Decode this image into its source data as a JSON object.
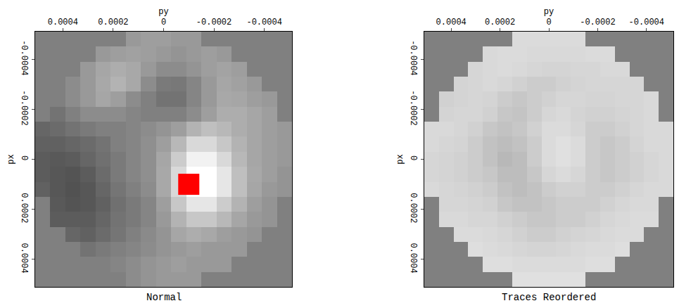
{
  "chart_data": [
    {
      "type": "heatmap",
      "title": "Normal",
      "x_label": "py",
      "y_label": "px",
      "x": [
        0.00048,
        0.00042,
        0.00036,
        0.0003,
        0.00024,
        0.00018,
        0.00012,
        6e-05,
        0,
        -6e-05,
        -0.00012,
        -0.00018,
        -0.00024,
        -0.0003,
        -0.00036,
        -0.00042,
        -0.00048
      ],
      "y": [
        -0.00048,
        -0.00042,
        -0.00036,
        -0.0003,
        -0.00024,
        -0.00018,
        -0.00012,
        -6e-05,
        0,
        6e-05,
        0.00012,
        0.00018,
        0.00024,
        0.0003,
        0.00036,
        0.00042,
        0.00048
      ],
      "z": [
        [
          null,
          null,
          null,
          null,
          null,
          null,
          0.6,
          0.62,
          0.62,
          0.6,
          0.6,
          null,
          null,
          null,
          null,
          null,
          null
        ],
        [
          null,
          null,
          null,
          null,
          0.6,
          0.62,
          0.63,
          0.62,
          0.6,
          0.58,
          0.6,
          0.62,
          0.6,
          null,
          null,
          null,
          null
        ],
        [
          null,
          null,
          null,
          0.6,
          0.65,
          0.68,
          0.66,
          0.6,
          0.55,
          0.55,
          0.58,
          0.62,
          0.64,
          0.62,
          null,
          null,
          null
        ],
        [
          null,
          null,
          0.55,
          0.6,
          0.66,
          0.7,
          0.66,
          0.55,
          0.48,
          0.47,
          0.52,
          0.6,
          0.65,
          0.63,
          0.6,
          null,
          null
        ],
        [
          null,
          0.5,
          0.55,
          0.6,
          0.65,
          0.62,
          0.55,
          0.5,
          0.45,
          0.45,
          0.52,
          0.6,
          0.66,
          0.65,
          0.62,
          0.6,
          null
        ],
        [
          null,
          0.45,
          0.5,
          0.55,
          0.55,
          0.55,
          0.52,
          0.5,
          0.5,
          0.5,
          0.55,
          0.62,
          0.68,
          0.68,
          0.65,
          0.62,
          null
        ],
        [
          0.4,
          0.42,
          0.45,
          0.48,
          0.5,
          0.5,
          0.52,
          0.55,
          0.58,
          0.62,
          0.7,
          0.75,
          0.72,
          0.68,
          0.65,
          0.62,
          0.6
        ],
        [
          0.38,
          0.38,
          0.4,
          0.42,
          0.45,
          0.5,
          0.52,
          0.56,
          0.62,
          0.72,
          0.85,
          0.85,
          0.78,
          0.7,
          0.65,
          0.62,
          0.6
        ],
        [
          0.36,
          0.35,
          0.36,
          0.4,
          0.44,
          0.48,
          0.52,
          0.56,
          0.65,
          0.8,
          0.95,
          0.95,
          0.85,
          0.72,
          0.65,
          0.62,
          0.6
        ],
        [
          0.36,
          0.34,
          0.33,
          0.36,
          0.42,
          0.48,
          0.52,
          0.56,
          0.66,
          0.85,
          1,
          1,
          0.9,
          0.75,
          0.66,
          0.62,
          0.58
        ],
        [
          0.38,
          0.34,
          0.32,
          0.34,
          0.4,
          0.46,
          0.5,
          0.55,
          0.66,
          0.85,
          1,
          1,
          0.9,
          0.75,
          0.65,
          0.6,
          0.58
        ],
        [
          null,
          0.35,
          0.33,
          0.34,
          0.38,
          0.44,
          0.48,
          0.52,
          0.62,
          0.78,
          0.9,
          0.9,
          0.8,
          0.7,
          0.62,
          0.58,
          null
        ],
        [
          null,
          0.36,
          0.36,
          0.36,
          0.4,
          0.45,
          0.48,
          0.52,
          0.6,
          0.7,
          0.78,
          0.78,
          0.72,
          0.65,
          0.6,
          0.58,
          null
        ],
        [
          null,
          null,
          0.4,
          0.38,
          0.42,
          0.46,
          0.5,
          0.54,
          0.58,
          0.65,
          0.68,
          0.66,
          0.62,
          0.6,
          0.58,
          null,
          null
        ],
        [
          null,
          null,
          null,
          0.45,
          0.48,
          0.5,
          0.52,
          0.55,
          0.58,
          0.6,
          0.62,
          0.6,
          0.6,
          0.6,
          null,
          null,
          null
        ],
        [
          null,
          null,
          null,
          null,
          0.5,
          0.52,
          0.55,
          0.58,
          0.6,
          0.62,
          0.6,
          0.6,
          0.6,
          null,
          null,
          null,
          null
        ],
        [
          null,
          null,
          null,
          null,
          null,
          null,
          0.55,
          0.58,
          0.6,
          0.6,
          0.6,
          null,
          null,
          null,
          null,
          null,
          null
        ]
      ],
      "zlim": [
        0,
        1
      ],
      "xlim": [
        0.00051,
        -0.00051
      ],
      "ylim": [
        0.00051,
        -0.00051
      ],
      "xticks": [
        0.0004,
        0.0002,
        0,
        -0.0002,
        -0.0004
      ],
      "yticks": [
        -0.0004,
        -0.0002,
        0,
        0.0002,
        0.0004
      ],
      "points": [
        {
          "x": -0.0001,
          "y": 0.0001,
          "color": "#ff0000",
          "marker": "square"
        }
      ]
    },
    {
      "type": "heatmap",
      "title": "Traces Reordered",
      "x_label": "py",
      "y_label": "px",
      "x": [
        0.00048,
        0.00042,
        0.00036,
        0.0003,
        0.00024,
        0.00018,
        0.00012,
        6e-05,
        0,
        -6e-05,
        -0.00012,
        -0.00018,
        -0.00024,
        -0.0003,
        -0.00036,
        -0.00042,
        -0.00048
      ],
      "y": [
        -0.00048,
        -0.00042,
        -0.00036,
        -0.0003,
        -0.00024,
        -0.00018,
        -0.00012,
        -6e-05,
        0,
        6e-05,
        0.00012,
        0.00018,
        0.00024,
        0.0003,
        0.00036,
        0.00042,
        0.00048
      ],
      "z": [
        [
          null,
          null,
          null,
          null,
          null,
          null,
          0.86,
          0.86,
          0.86,
          0.86,
          0.86,
          null,
          null,
          null,
          null,
          null,
          null
        ],
        [
          null,
          null,
          null,
          null,
          0.85,
          0.86,
          0.86,
          0.85,
          0.85,
          0.85,
          0.85,
          0.86,
          0.86,
          null,
          null,
          null,
          null
        ],
        [
          null,
          null,
          null,
          0.84,
          0.85,
          0.86,
          0.85,
          0.84,
          0.83,
          0.83,
          0.84,
          0.84,
          0.85,
          0.85,
          null,
          null,
          null
        ],
        [
          null,
          null,
          0.83,
          0.84,
          0.85,
          0.84,
          0.82,
          0.8,
          0.8,
          0.82,
          0.83,
          0.84,
          0.84,
          0.84,
          0.84,
          null,
          null
        ],
        [
          null,
          0.82,
          0.83,
          0.84,
          0.83,
          0.8,
          0.78,
          0.8,
          0.82,
          0.84,
          0.84,
          0.83,
          0.83,
          0.84,
          0.84,
          0.85,
          null
        ],
        [
          null,
          0.83,
          0.84,
          0.84,
          0.82,
          0.78,
          0.77,
          0.8,
          0.84,
          0.85,
          0.83,
          0.82,
          0.82,
          0.83,
          0.84,
          0.85,
          null
        ],
        [
          0.85,
          0.85,
          0.84,
          0.82,
          0.78,
          0.76,
          0.78,
          0.82,
          0.86,
          0.86,
          0.84,
          0.8,
          0.8,
          0.82,
          0.84,
          0.85,
          0.85
        ],
        [
          0.85,
          0.84,
          0.83,
          0.8,
          0.76,
          0.74,
          0.76,
          0.8,
          0.86,
          0.88,
          0.86,
          0.8,
          0.78,
          0.8,
          0.83,
          0.85,
          0.85
        ],
        [
          0.84,
          0.83,
          0.82,
          0.8,
          0.76,
          0.72,
          0.74,
          0.8,
          0.86,
          0.88,
          0.86,
          0.8,
          0.78,
          0.8,
          0.82,
          0.84,
          0.85
        ],
        [
          0.84,
          0.83,
          0.82,
          0.8,
          0.78,
          0.74,
          0.74,
          0.78,
          0.84,
          0.86,
          0.84,
          0.8,
          0.78,
          0.8,
          0.82,
          0.84,
          0.85
        ],
        [
          0.85,
          0.84,
          0.83,
          0.82,
          0.8,
          0.76,
          0.74,
          0.76,
          0.8,
          0.82,
          0.82,
          0.8,
          0.8,
          0.82,
          0.84,
          0.85,
          0.85
        ],
        [
          null,
          0.84,
          0.84,
          0.83,
          0.82,
          0.78,
          0.76,
          0.76,
          0.78,
          0.8,
          0.8,
          0.8,
          0.82,
          0.84,
          0.85,
          0.85,
          null
        ],
        [
          null,
          0.85,
          0.85,
          0.84,
          0.84,
          0.82,
          0.8,
          0.78,
          0.78,
          0.8,
          0.8,
          0.82,
          0.84,
          0.85,
          0.86,
          0.86,
          null
        ],
        [
          null,
          null,
          0.86,
          0.86,
          0.85,
          0.84,
          0.82,
          0.8,
          0.8,
          0.82,
          0.83,
          0.84,
          0.85,
          0.86,
          0.86,
          null,
          null
        ],
        [
          null,
          null,
          null,
          0.87,
          0.86,
          0.85,
          0.84,
          0.83,
          0.83,
          0.84,
          0.85,
          0.86,
          0.86,
          0.87,
          null,
          null,
          null
        ],
        [
          null,
          null,
          null,
          null,
          0.87,
          0.87,
          0.86,
          0.86,
          0.86,
          0.86,
          0.86,
          0.87,
          0.87,
          null,
          null,
          null,
          null
        ],
        [
          null,
          null,
          null,
          null,
          null,
          null,
          0.88,
          0.88,
          0.88,
          0.88,
          0.88,
          null,
          null,
          null,
          null,
          null,
          null
        ]
      ],
      "zlim": [
        0,
        1
      ],
      "xlim": [
        0.00051,
        -0.00051
      ],
      "ylim": [
        0.00051,
        -0.00051
      ],
      "xticks": [
        0.0004,
        0.0002,
        0,
        -0.0002,
        -0.0004
      ],
      "yticks": [
        -0.0004,
        -0.0002,
        0,
        0.0002,
        0.0004
      ]
    }
  ]
}
